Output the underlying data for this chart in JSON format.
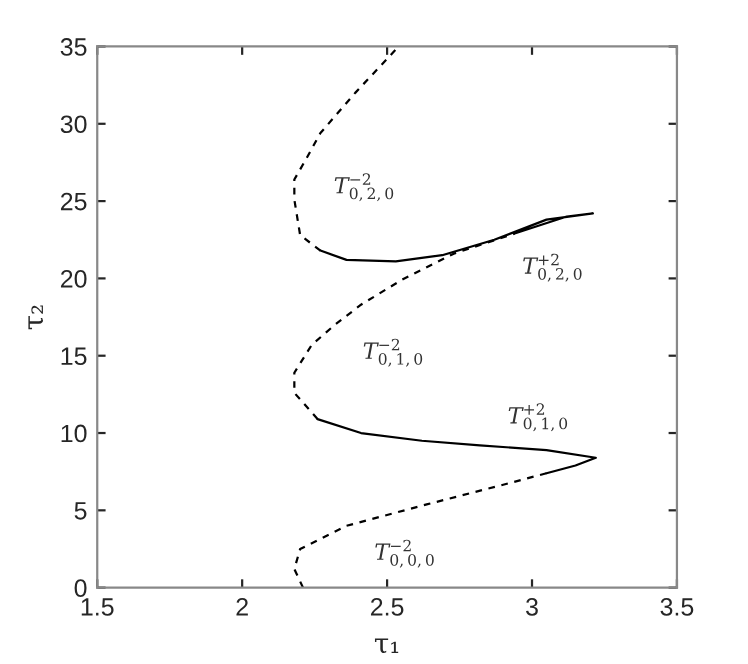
{
  "chart_data": {
    "type": "line",
    "xlabel": "τ₁",
    "ylabel": "τ₂",
    "series": [
      {
        "name": "T$^{−2}$$_{0,0,0}$",
        "color": "#000000",
        "line_style": "dashed",
        "x": [
          2.21,
          2.18,
          2.2,
          2.36,
          2.64,
          2.91,
          3.05
        ],
        "values": [
          0,
          1.2,
          2.5,
          4.0,
          5.4,
          6.7,
          7.4
        ]
      },
      {
        "name": "T$^{+2}$$_{0,1,0}$",
        "color": "#000000",
        "line_style": "solid",
        "x": [
          3.05,
          3.15,
          3.22,
          3.05,
          2.82,
          2.62,
          2.41,
          2.26
        ],
        "values": [
          7.4,
          7.9,
          8.4,
          8.9,
          9.2,
          9.5,
          10.0,
          10.9
        ]
      },
      {
        "name": "T$^{−2}$$_{0,1,0}$",
        "color": "#000000",
        "line_style": "dashed",
        "x": [
          2.26,
          2.18,
          2.18,
          2.24,
          2.32,
          2.41,
          2.55,
          2.73,
          2.94
        ],
        "values": [
          10.9,
          12.6,
          13.9,
          15.7,
          17.0,
          18.3,
          19.9,
          21.6,
          22.9
        ]
      },
      {
        "name": "T$^{+2}$$_{0,2,0}$",
        "color": "#000000",
        "line_style": "solid",
        "x": [
          2.94,
          3.12,
          3.21,
          3.05,
          2.87,
          2.69,
          2.53,
          2.36,
          2.27
        ],
        "values": [
          22.9,
          24.0,
          24.2,
          23.8,
          22.5,
          21.5,
          21.1,
          21.2,
          21.8
        ]
      },
      {
        "name": "T$^{−2}$$_{0,2,0}$",
        "color": "#000000",
        "line_style": "dashed",
        "x": [
          2.27,
          2.2,
          2.18,
          2.18,
          2.22,
          2.27,
          2.39,
          2.53
        ],
        "values": [
          21.8,
          22.8,
          25.1,
          26.4,
          27.7,
          29.4,
          32.0,
          34.8
        ]
      }
    ],
    "xlim": [
      1.5,
      3.5
    ],
    "ylim": [
      0,
      35
    ],
    "xticks": [
      1.5,
      2,
      2.5,
      3,
      3.5
    ],
    "yticks": [
      0,
      5,
      10,
      15,
      20,
      25,
      30,
      35
    ],
    "grid": false,
    "legend": false,
    "marker": "none"
  }
}
